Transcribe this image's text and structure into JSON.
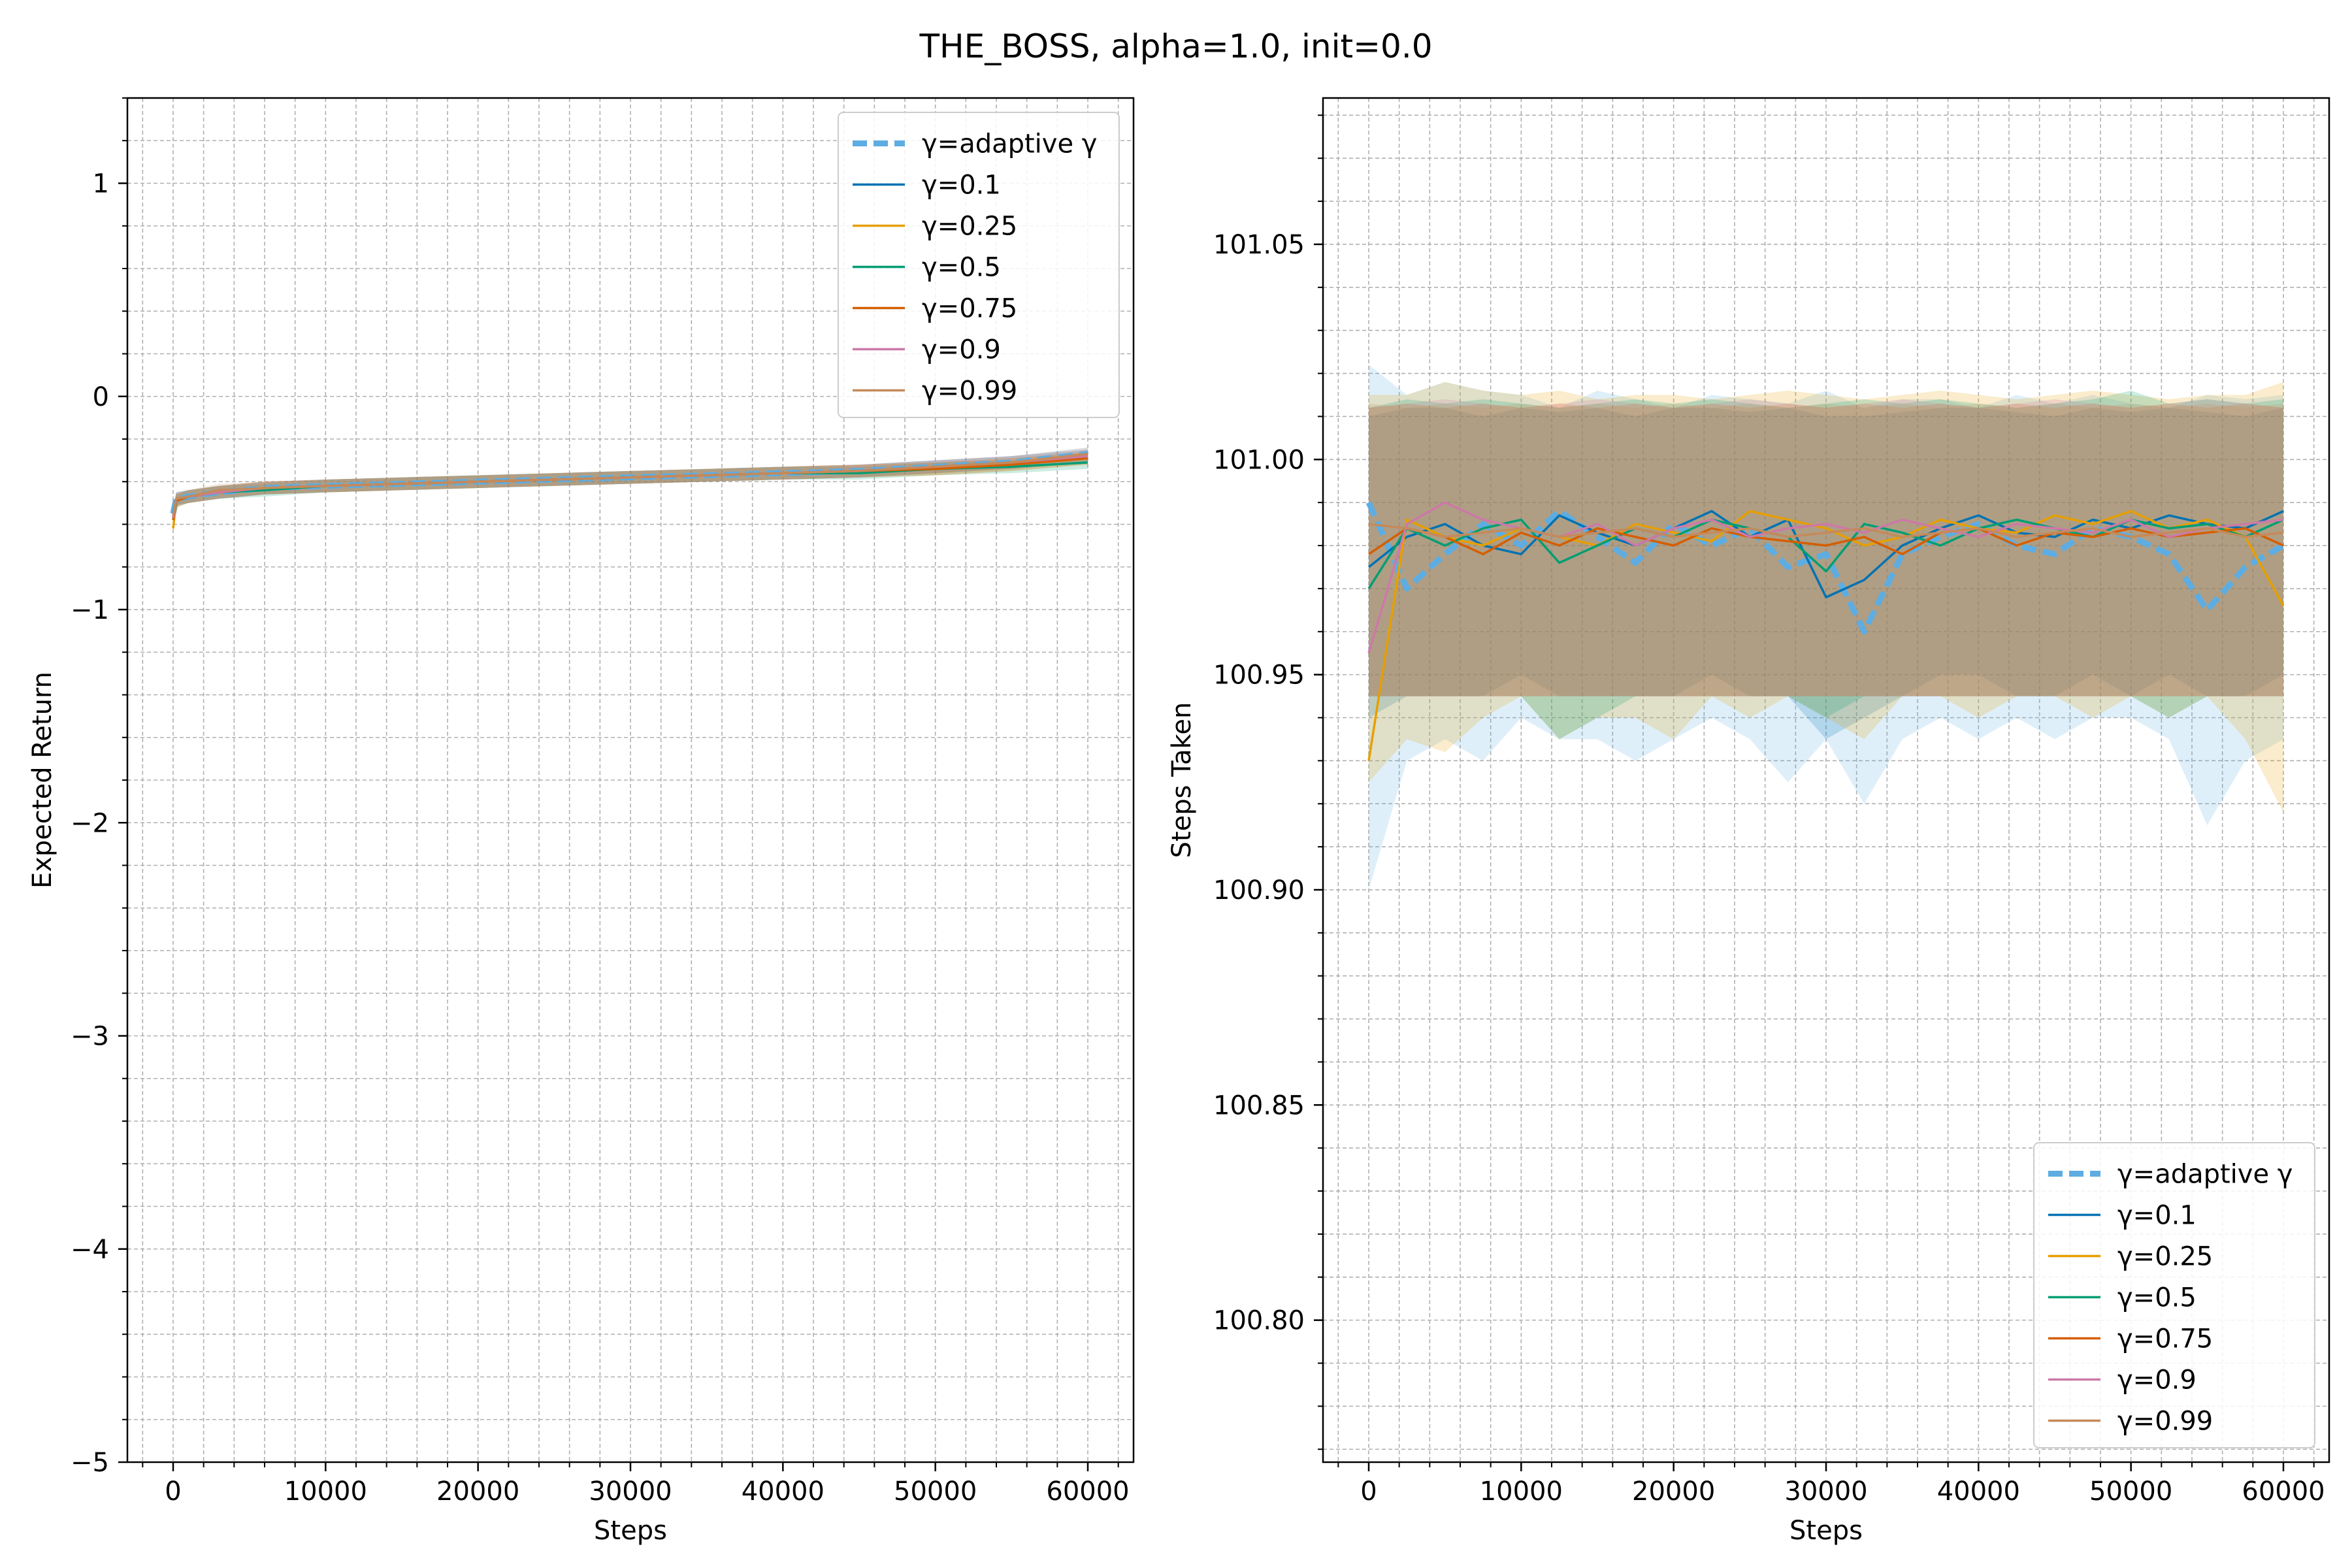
{
  "figure_title": "THE_BOSS, alpha=1.0, init=0.0",
  "colors": {
    "adaptive": "#5dade2",
    "g0.1": "#0072b2",
    "g0.25": "#e69f00",
    "g0.5": "#009e73",
    "g0.75": "#d55e00",
    "g0.9": "#cc79a7",
    "g0.99": "#c58a5a"
  },
  "chart_data": [
    {
      "type": "line",
      "title": "",
      "xlabel": "Steps",
      "ylabel": "Expected Return",
      "xlim": [
        -3000,
        63000
      ],
      "ylim": [
        -5,
        1.4
      ],
      "grid": true,
      "xticks": [
        0,
        10000,
        20000,
        30000,
        40000,
        50000,
        60000
      ],
      "xtick_labels": [
        "0",
        "10000",
        "20000",
        "30000",
        "40000",
        "50000",
        "60000"
      ],
      "yticks": [
        -5,
        -4,
        -3,
        -2,
        -1,
        0,
        1
      ],
      "ytick_labels": [
        "−5",
        "−4",
        "−3",
        "−2",
        "−1",
        "0",
        "1"
      ],
      "legend_location": "upper right",
      "legend": [
        "γ=adaptive γ",
        "γ=0.1",
        "γ=0.25",
        "γ=0.5",
        "γ=0.75",
        "γ=0.9",
        "γ=0.99"
      ],
      "x": [
        0,
        200,
        1000,
        3000,
        6000,
        10000,
        15000,
        20000,
        25000,
        30000,
        35000,
        40000,
        45000,
        50000,
        55000,
        60000
      ],
      "series": [
        {
          "name": "γ=adaptive γ",
          "key": "adaptive",
          "values": [
            -0.55,
            -0.48,
            -0.47,
            -0.45,
            -0.43,
            -0.42,
            -0.41,
            -0.4,
            -0.39,
            -0.38,
            -0.37,
            -0.36,
            -0.35,
            -0.33,
            -0.31,
            -0.27
          ]
        },
        {
          "name": "γ=0.1",
          "key": "g0.1",
          "values": [
            -0.56,
            -0.48,
            -0.47,
            -0.45,
            -0.43,
            -0.42,
            -0.41,
            -0.4,
            -0.39,
            -0.38,
            -0.37,
            -0.36,
            -0.35,
            -0.33,
            -0.31,
            -0.28
          ]
        },
        {
          "name": "γ=0.25",
          "key": "g0.25",
          "values": [
            -0.62,
            -0.49,
            -0.47,
            -0.45,
            -0.43,
            -0.42,
            -0.41,
            -0.4,
            -0.39,
            -0.38,
            -0.37,
            -0.36,
            -0.35,
            -0.34,
            -0.32,
            -0.29
          ]
        },
        {
          "name": "γ=0.5",
          "key": "g0.5",
          "values": [
            -0.57,
            -0.49,
            -0.47,
            -0.45,
            -0.44,
            -0.42,
            -0.41,
            -0.4,
            -0.39,
            -0.38,
            -0.37,
            -0.36,
            -0.36,
            -0.34,
            -0.33,
            -0.31
          ]
        },
        {
          "name": "γ=0.75",
          "key": "g0.75",
          "values": [
            -0.58,
            -0.49,
            -0.47,
            -0.45,
            -0.43,
            -0.42,
            -0.41,
            -0.4,
            -0.39,
            -0.38,
            -0.37,
            -0.36,
            -0.35,
            -0.34,
            -0.32,
            -0.29
          ]
        },
        {
          "name": "γ=0.9",
          "key": "g0.9",
          "values": [
            -0.57,
            -0.48,
            -0.47,
            -0.45,
            -0.43,
            -0.42,
            -0.41,
            -0.4,
            -0.39,
            -0.38,
            -0.37,
            -0.36,
            -0.35,
            -0.33,
            -0.31,
            -0.28
          ]
        },
        {
          "name": "γ=0.99",
          "key": "g0.99",
          "values": [
            -0.56,
            -0.48,
            -0.47,
            -0.44,
            -0.43,
            -0.42,
            -0.41,
            -0.4,
            -0.39,
            -0.38,
            -0.37,
            -0.36,
            -0.35,
            -0.33,
            -0.31,
            -0.27
          ]
        }
      ],
      "band_halfwidth": 0.03
    },
    {
      "type": "line",
      "title": "",
      "xlabel": "Steps",
      "ylabel": "Steps Taken",
      "xlim": [
        -3000,
        63000
      ],
      "ylim": [
        100.767,
        101.084
      ],
      "grid": true,
      "xticks": [
        0,
        10000,
        20000,
        30000,
        40000,
        50000,
        60000
      ],
      "xtick_labels": [
        "0",
        "10000",
        "20000",
        "30000",
        "40000",
        "50000",
        "60000"
      ],
      "yticks": [
        100.8,
        100.85,
        100.9,
        100.95,
        101.0,
        101.05
      ],
      "ytick_labels": [
        "100.80",
        "100.85",
        "100.90",
        "100.95",
        "101.00",
        "101.05"
      ],
      "legend_location": "lower right",
      "legend": [
        "γ=adaptive γ",
        "γ=0.1",
        "γ=0.25",
        "γ=0.5",
        "γ=0.75",
        "γ=0.9",
        "γ=0.99"
      ],
      "x": [
        0,
        2500,
        5000,
        7500,
        10000,
        12500,
        15000,
        17500,
        20000,
        22500,
        25000,
        27500,
        30000,
        32500,
        35000,
        37500,
        40000,
        42500,
        45000,
        47500,
        50000,
        52500,
        55000,
        57500,
        60000
      ],
      "series": [
        {
          "name": "γ=adaptive γ",
          "key": "adaptive",
          "values": [
            100.99,
            100.97,
            100.978,
            100.985,
            100.98,
            100.988,
            100.982,
            100.976,
            100.985,
            100.98,
            100.984,
            100.975,
            100.978,
            100.96,
            100.978,
            100.982,
            100.985,
            100.98,
            100.978,
            100.984,
            100.982,
            100.978,
            100.965,
            100.975,
            100.98
          ],
          "lower": [
            100.9,
            100.93,
            100.935,
            100.93,
            100.94,
            100.935,
            100.935,
            100.93,
            100.935,
            100.94,
            100.935,
            100.925,
            100.935,
            100.92,
            100.935,
            100.94,
            100.935,
            100.94,
            100.935,
            100.94,
            100.94,
            100.935,
            100.915,
            100.93,
            100.935
          ],
          "upper": [
            101.022,
            101.015,
            101.018,
            101.016,
            101.015,
            101.012,
            101.016,
            101.014,
            101.012,
            101.015,
            101.014,
            101.013,
            101.016,
            101.012,
            101.014,
            101.014,
            101.012,
            101.015,
            101.013,
            101.015,
            101.013,
            101.012,
            101.015,
            101.014,
            101.015
          ]
        },
        {
          "name": "γ=0.1",
          "key": "g0.1",
          "values": [
            100.975,
            100.982,
            100.985,
            100.98,
            100.978,
            100.987,
            100.983,
            100.98,
            100.984,
            100.988,
            100.982,
            100.986,
            100.968,
            100.972,
            100.98,
            100.984,
            100.987,
            100.983,
            100.982,
            100.986,
            100.984,
            100.987,
            100.985,
            100.984,
            100.988
          ],
          "lower": [
            100.94,
            100.945,
            100.945,
            100.945,
            100.95,
            100.945,
            100.945,
            100.945,
            100.945,
            100.95,
            100.945,
            100.945,
            100.935,
            100.94,
            100.945,
            100.95,
            100.95,
            100.945,
            100.945,
            100.95,
            100.945,
            100.95,
            100.945,
            100.945,
            100.95
          ],
          "upper": [
            101.01,
            101.012,
            101.012,
            101.01,
            101.012,
            101.011,
            101.012,
            101.01,
            101.012,
            101.012,
            101.011,
            101.012,
            101.01,
            101.01,
            101.011,
            101.012,
            101.012,
            101.011,
            101.01,
            101.012,
            101.011,
            101.012,
            101.011,
            101.01,
            101.012
          ]
        },
        {
          "name": "γ=0.25",
          "key": "g0.25",
          "values": [
            100.93,
            100.986,
            100.982,
            100.98,
            100.984,
            100.982,
            100.98,
            100.985,
            100.983,
            100.981,
            100.988,
            100.986,
            100.984,
            100.98,
            100.982,
            100.986,
            100.984,
            100.983,
            100.987,
            100.985,
            100.988,
            100.984,
            100.986,
            100.982,
            100.966
          ],
          "lower": [
            100.925,
            100.935,
            100.932,
            100.94,
            100.945,
            100.935,
            100.94,
            100.94,
            100.935,
            100.945,
            100.94,
            100.945,
            100.94,
            100.935,
            100.945,
            100.945,
            100.94,
            100.945,
            100.945,
            100.94,
            100.945,
            100.94,
            100.945,
            100.935,
            100.918
          ],
          "upper": [
            101.015,
            101.015,
            101.018,
            101.016,
            101.015,
            101.016,
            101.014,
            101.015,
            101.015,
            101.014,
            101.015,
            101.016,
            101.015,
            101.014,
            101.015,
            101.016,
            101.015,
            101.014,
            101.015,
            101.016,
            101.015,
            101.014,
            101.015,
            101.015,
            101.018
          ]
        },
        {
          "name": "γ=0.5",
          "key": "g0.5",
          "values": [
            100.97,
            100.984,
            100.98,
            100.984,
            100.986,
            100.976,
            100.98,
            100.984,
            100.982,
            100.986,
            100.984,
            100.982,
            100.974,
            100.985,
            100.983,
            100.98,
            100.984,
            100.986,
            100.984,
            100.982,
            100.986,
            100.984,
            100.985,
            100.982,
            100.986
          ],
          "lower": [
            100.945,
            100.945,
            100.945,
            100.945,
            100.945,
            100.935,
            100.94,
            100.945,
            100.945,
            100.945,
            100.945,
            100.945,
            100.94,
            100.945,
            100.945,
            100.945,
            100.945,
            100.945,
            100.945,
            100.945,
            100.945,
            100.94,
            100.945,
            100.945,
            100.945
          ],
          "upper": [
            101.012,
            101.014,
            101.013,
            101.014,
            101.013,
            101.012,
            101.013,
            101.014,
            101.013,
            101.014,
            101.013,
            101.012,
            101.013,
            101.014,
            101.013,
            101.014,
            101.013,
            101.012,
            101.013,
            101.014,
            101.016,
            101.013,
            101.014,
            101.013,
            101.014
          ]
        },
        {
          "name": "γ=0.75",
          "key": "g0.75",
          "values": [
            100.978,
            100.984,
            100.982,
            100.978,
            100.983,
            100.98,
            100.984,
            100.982,
            100.98,
            100.984,
            100.982,
            100.981,
            100.98,
            100.982,
            100.978,
            100.983,
            100.984,
            100.98,
            100.983,
            100.982,
            100.984,
            100.982,
            100.983,
            100.984,
            100.98
          ],
          "lower": [
            100.945,
            100.945,
            100.945,
            100.945,
            100.945,
            100.945,
            100.945,
            100.945,
            100.945,
            100.945,
            100.945,
            100.945,
            100.945,
            100.945,
            100.945,
            100.945,
            100.945,
            100.945,
            100.945,
            100.945,
            100.945,
            100.945,
            100.945,
            100.945,
            100.945
          ],
          "upper": [
            101.012,
            101.013,
            101.012,
            101.013,
            101.012,
            101.013,
            101.012,
            101.013,
            101.012,
            101.013,
            101.012,
            101.013,
            101.012,
            101.013,
            101.012,
            101.013,
            101.012,
            101.013,
            101.012,
            101.013,
            101.012,
            101.013,
            101.012,
            101.013,
            101.012
          ]
        },
        {
          "name": "γ=0.9",
          "key": "g0.9",
          "values": [
            100.955,
            100.985,
            100.99,
            100.986,
            100.984,
            100.982,
            100.985,
            100.98,
            100.984,
            100.986,
            100.982,
            100.984,
            100.985,
            100.983,
            100.986,
            100.984,
            100.982,
            100.985,
            100.984,
            100.983,
            100.986,
            100.982,
            100.984,
            100.985,
            100.986
          ],
          "lower": [
            100.945,
            100.945,
            100.945,
            100.945,
            100.945,
            100.945,
            100.945,
            100.945,
            100.945,
            100.945,
            100.945,
            100.945,
            100.945,
            100.945,
            100.945,
            100.945,
            100.945,
            100.945,
            100.945,
            100.945,
            100.945,
            100.945,
            100.945,
            100.945,
            100.945
          ],
          "upper": [
            101.012,
            101.013,
            101.014,
            101.013,
            101.012,
            101.013,
            101.014,
            101.013,
            101.012,
            101.013,
            101.014,
            101.013,
            101.012,
            101.013,
            101.014,
            101.013,
            101.012,
            101.013,
            101.014,
            101.013,
            101.012,
            101.013,
            101.014,
            101.013,
            101.012
          ]
        },
        {
          "name": "γ=0.99",
          "key": "g0.99",
          "values": [
            100.985,
            100.984,
            100.982,
            100.983,
            100.984,
            100.982,
            100.983,
            100.984,
            100.982,
            100.983,
            100.984,
            100.982,
            100.983,
            100.984,
            100.982,
            100.983,
            100.984,
            100.982,
            100.983,
            100.984,
            100.982,
            100.983,
            100.984,
            100.982,
            100.983
          ],
          "lower": [
            100.945,
            100.945,
            100.945,
            100.945,
            100.945,
            100.945,
            100.945,
            100.945,
            100.945,
            100.945,
            100.945,
            100.945,
            100.945,
            100.945,
            100.945,
            100.945,
            100.945,
            100.945,
            100.945,
            100.945,
            100.945,
            100.945,
            100.945,
            100.945,
            100.945
          ],
          "upper": [
            101.013,
            101.012,
            101.013,
            101.012,
            101.013,
            101.012,
            101.013,
            101.012,
            101.013,
            101.012,
            101.013,
            101.012,
            101.013,
            101.012,
            101.013,
            101.012,
            101.013,
            101.012,
            101.013,
            101.012,
            101.013,
            101.012,
            101.013,
            101.012,
            101.013
          ]
        }
      ]
    }
  ]
}
